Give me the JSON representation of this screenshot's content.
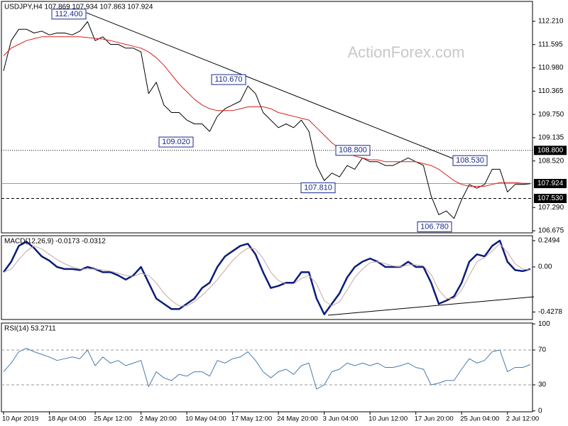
{
  "chart_data": [
    {
      "type": "line",
      "title": "USDJPY,H4  107.869 107.934 107.863 107.924",
      "watermark": "ActionForex.com",
      "ylim": [
        106.62,
        112.735
      ],
      "yticks": [
        {
          "value": 112.21,
          "label": "112.210"
        },
        111.595,
        {
          "value": 110.98,
          "label": "110.980"
        },
        110.365,
        {
          "value": 109.75,
          "label": "109.750"
        },
        109.135,
        {
          "value": 108.52,
          "label": "108.520"
        },
        {
          "value": 107.29,
          "label": "107.290"
        },
        106.675
      ],
      "hlines": [
        {
          "value": 108.8,
          "label": "108.800",
          "style": "dotted",
          "color": "#000000"
        },
        {
          "value": 107.924,
          "label": "107.924",
          "style": "solid",
          "color": "#9a9a9a"
        },
        {
          "value": 107.53,
          "label": "107.530",
          "style": "dashed",
          "color": "#000000"
        }
      ],
      "annotations": [
        {
          "value": 112.4,
          "label": "112.400"
        },
        {
          "value": 110.67,
          "label": "110.670"
        },
        {
          "value": 109.02,
          "label": "109.020"
        },
        {
          "value": 108.8,
          "label": "108.800"
        },
        {
          "value": 107.81,
          "label": "107.810"
        },
        {
          "value": 108.53,
          "label": "108.530"
        },
        {
          "value": 106.78,
          "label": "106.780"
        }
      ],
      "series": [
        {
          "color": "#000000",
          "values": [
            110.9,
            111.7,
            112.0,
            112.0,
            111.9,
            111.95,
            111.85,
            111.9,
            111.9,
            111.85,
            111.95,
            112.2,
            111.7,
            111.8,
            111.6,
            111.6,
            111.5,
            111.5,
            111.4,
            110.3,
            110.6,
            110.0,
            109.8,
            109.8,
            109.6,
            109.5,
            109.5,
            109.3,
            109.7,
            109.9,
            110.0,
            110.1,
            110.5,
            110.3,
            109.8,
            109.6,
            109.4,
            109.5,
            109.4,
            109.6,
            109.3,
            108.4,
            108.0,
            108.2,
            108.1,
            108.4,
            108.3,
            108.6,
            108.5,
            108.5,
            108.4,
            108.4,
            108.5,
            108.6,
            108.5,
            108.4,
            107.6,
            107.1,
            107.2,
            107.0,
            107.5,
            107.9,
            107.8,
            107.9,
            108.3,
            108.3,
            107.7,
            107.9,
            107.9,
            107.92
          ]
        },
        {
          "color": "#d81e1e",
          "values": [
            111.3,
            111.5,
            111.6,
            111.7,
            111.75,
            111.8,
            111.8,
            111.8,
            111.8,
            111.8,
            111.8,
            111.78,
            111.76,
            111.74,
            111.7,
            111.65,
            111.6,
            111.55,
            111.5,
            111.4,
            111.25,
            111.05,
            110.8,
            110.55,
            110.35,
            110.15,
            110.0,
            109.9,
            109.85,
            109.85,
            109.85,
            109.9,
            109.95,
            109.95,
            109.95,
            109.9,
            109.8,
            109.75,
            109.7,
            109.65,
            109.6,
            109.4,
            109.2,
            109.0,
            108.85,
            108.75,
            108.65,
            108.6,
            108.55,
            108.55,
            108.5,
            108.5,
            108.5,
            108.5,
            108.5,
            108.45,
            108.4,
            108.3,
            108.15,
            108.0,
            107.9,
            107.85,
            107.85,
            107.85,
            107.9,
            107.95,
            107.95,
            107.95,
            107.93,
            107.93
          ]
        }
      ]
    },
    {
      "type": "line",
      "title": "MACD(12,26,9) -0.0173 -0.0312",
      "ylim": [
        -0.499,
        0.2965
      ],
      "yticks": [
        0.2494,
        {
          "value": 0,
          "label": "0.00"
        },
        -0.4278
      ],
      "series": [
        {
          "color": "#0b1d7a",
          "values": [
            -0.05,
            0.05,
            0.2,
            0.24,
            0.18,
            0.1,
            0.06,
            0.0,
            -0.02,
            -0.02,
            -0.03,
            0.0,
            -0.02,
            -0.05,
            -0.05,
            -0.08,
            -0.12,
            -0.08,
            0.0,
            -0.15,
            -0.3,
            -0.35,
            -0.4,
            -0.4,
            -0.35,
            -0.3,
            -0.2,
            -0.15,
            0.0,
            0.1,
            0.15,
            0.2,
            0.22,
            0.12,
            -0.05,
            -0.2,
            -0.18,
            -0.15,
            -0.15,
            -0.05,
            -0.05,
            -0.3,
            -0.45,
            -0.35,
            -0.25,
            -0.1,
            0.0,
            0.05,
            0.08,
            0.05,
            0.0,
            0.0,
            0.0,
            0.05,
            0.0,
            0.0,
            -0.15,
            -0.35,
            -0.32,
            -0.28,
            -0.15,
            0.05,
            0.12,
            0.1,
            0.2,
            0.25,
            0.05,
            -0.03,
            -0.04,
            -0.02
          ]
        },
        {
          "color": "#c9a5a5",
          "values": [
            -0.05,
            -0.02,
            0.07,
            0.15,
            0.2,
            0.17,
            0.12,
            0.07,
            0.03,
            0.0,
            -0.02,
            -0.02,
            -0.02,
            -0.03,
            -0.04,
            -0.06,
            -0.08,
            -0.09,
            -0.06,
            -0.08,
            -0.15,
            -0.25,
            -0.32,
            -0.37,
            -0.37,
            -0.33,
            -0.27,
            -0.2,
            -0.12,
            -0.03,
            0.06,
            0.13,
            0.18,
            0.17,
            0.08,
            -0.05,
            -0.13,
            -0.16,
            -0.16,
            -0.11,
            -0.08,
            -0.16,
            -0.32,
            -0.37,
            -0.33,
            -0.22,
            -0.1,
            -0.02,
            0.04,
            0.05,
            0.03,
            0.01,
            0.0,
            0.02,
            0.02,
            0.01,
            -0.07,
            -0.22,
            -0.3,
            -0.3,
            -0.22,
            -0.08,
            0.05,
            0.09,
            0.15,
            0.22,
            0.14,
            0.03,
            -0.02,
            -0.03
          ]
        }
      ]
    },
    {
      "type": "line",
      "title": "RSI(14) 53.2711",
      "ylim": [
        -1,
        101
      ],
      "yticks": [
        100,
        70,
        30,
        0
      ],
      "hlines": [
        {
          "value": 70,
          "style": "dashed",
          "color": "#9a9a9a"
        },
        {
          "value": 30,
          "style": "dashed",
          "color": "#9a9a9a"
        }
      ],
      "categories": [
        "10 Apr 2019",
        null,
        null,
        null,
        null,
        null,
        "18 Apr 04:00",
        null,
        null,
        null,
        null,
        null,
        "25 Apr 12:00",
        null,
        null,
        null,
        null,
        null,
        "2 May 20:00",
        null,
        null,
        null,
        null,
        null,
        "10 May 04:00",
        null,
        null,
        null,
        null,
        null,
        "17 May 12:00",
        null,
        null,
        null,
        null,
        null,
        "24 May 20:00",
        null,
        null,
        null,
        null,
        null,
        "3 Jun 04:00",
        null,
        null,
        null,
        null,
        null,
        "10 Jun 12:00",
        null,
        null,
        null,
        null,
        null,
        "17 Jun 20:00",
        null,
        null,
        null,
        null,
        null,
        "25 Jun 04:00",
        null,
        null,
        null,
        null,
        null,
        "2 Jul 12:00",
        null,
        null,
        null
      ],
      "series": [
        {
          "color": "#4a7ab0",
          "values": [
            45,
            55,
            68,
            72,
            68,
            65,
            62,
            58,
            60,
            62,
            60,
            70,
            52,
            62,
            55,
            58,
            52,
            55,
            58,
            28,
            45,
            38,
            35,
            42,
            40,
            45,
            45,
            40,
            58,
            55,
            60,
            62,
            68,
            58,
            45,
            38,
            45,
            48,
            42,
            52,
            55,
            25,
            30,
            45,
            48,
            55,
            52,
            55,
            52,
            55,
            50,
            50,
            52,
            55,
            50,
            48,
            30,
            32,
            35,
            35,
            48,
            60,
            55,
            58,
            68,
            70,
            45,
            50,
            50,
            53.2711
          ]
        }
      ]
    }
  ]
}
